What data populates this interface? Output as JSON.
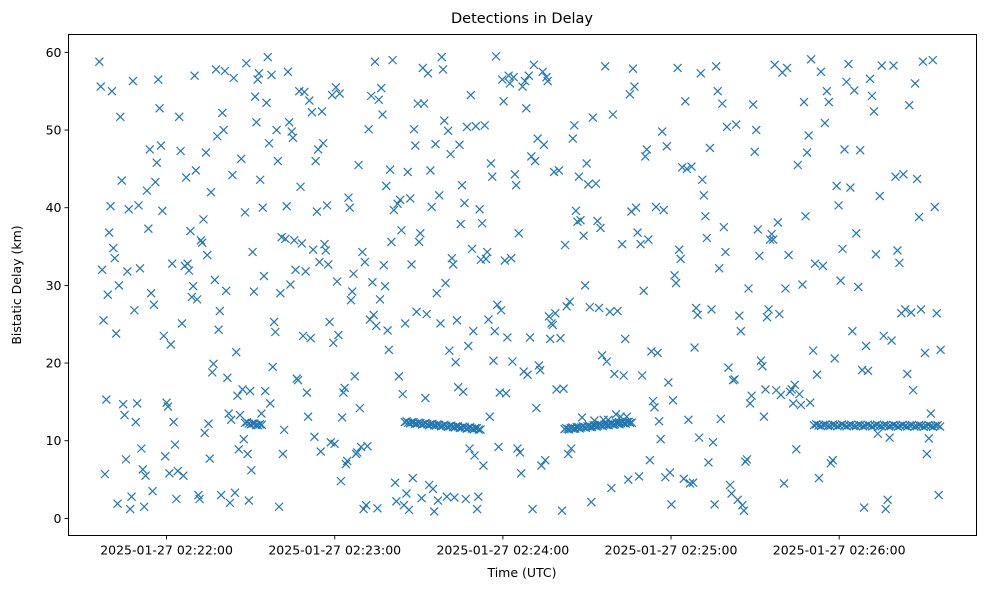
{
  "chart_data": {
    "type": "scatter",
    "title": "Detections in Delay",
    "xlabel": "Time (UTC)",
    "ylabel": "Bistatic Delay (km)",
    "x_unit": "seconds after 2025-01-27 02:21:00 UTC",
    "xlim": [
      25,
      349
    ],
    "ylim": [
      -2.2,
      62.3
    ],
    "grid": false,
    "legend": "none",
    "marker": "x",
    "color": "#1f77b4",
    "x_ticks": [
      {
        "value": 60,
        "label": "2025-01-27 02:22:00"
      },
      {
        "value": 120,
        "label": "2025-01-27 02:23:00"
      },
      {
        "value": 180,
        "label": "2025-01-27 02:24:00"
      },
      {
        "value": 240,
        "label": "2025-01-27 02:25:00"
      },
      {
        "value": 300,
        "label": "2025-01-27 02:26:00"
      }
    ],
    "y_ticks": [
      {
        "value": 0,
        "label": "0"
      },
      {
        "value": 10,
        "label": "10"
      },
      {
        "value": 20,
        "label": "20"
      },
      {
        "value": 30,
        "label": "30"
      },
      {
        "value": 40,
        "label": "40"
      },
      {
        "value": 50,
        "label": "50"
      },
      {
        "value": 60,
        "label": "60"
      }
    ],
    "scattered_detections": [
      {
        "x_start": 36,
        "x_step": 0.5,
        "y": [
          58.8,
          55.6,
          32,
          25.5,
          5.7,
          15.3,
          28.8,
          36.8,
          40.2,
          55,
          34.8,
          33.5,
          23.8,
          1.9,
          30,
          51.7,
          43.5,
          14.7,
          13.3,
          7.6,
          31.8,
          39.8,
          1.2,
          2.8,
          56.3,
          26.8,
          12.4,
          14.8,
          40.3,
          32.2,
          9,
          6.3,
          1.5,
          5.5,
          42.2,
          37.3,
          47.5,
          29,
          3.5,
          27.5,
          43.3,
          45.8,
          56.5,
          52.8,
          48,
          39.6,
          23.5,
          8,
          14.9,
          14.4,
          5.8,
          22.4,
          32.8,
          12.4,
          9.5,
          2.5,
          6.1,
          51.7,
          47.3,
          25.1,
          5.5,
          32.5,
          43.9,
          32.8,
          31.9,
          37,
          28.5,
          29.9
        ]
      },
      {
        "x_start": 70,
        "x_step": 0.45,
        "y": [
          57,
          44.8,
          28.2,
          3,
          2.5,
          35.8,
          35.5,
          38.5,
          11,
          47.1,
          33.9,
          12.2,
          7.7,
          42,
          18.8,
          19.9,
          30.7,
          57.8,
          49.2,
          24.3,
          26.7,
          3,
          52.2,
          50,
          57.6,
          29.3,
          18.1,
          13.5,
          2,
          12.7,
          44.2,
          56.7,
          3.3,
          21.4,
          15.8,
          8.9,
          13.3,
          46.3,
          16.6,
          10.2,
          39.4,
          58.6,
          8.3,
          2.3,
          16.4,
          6.2,
          34.3,
          29.2,
          54.3,
          51,
          56.5,
          57.3,
          43.6,
          13.5,
          40,
          31.2,
          16.4,
          53.5,
          59.4,
          48.3,
          14.8,
          57.1,
          19.5,
          25.3,
          24,
          50,
          46,
          1.5,
          29,
          36.2,
          8.3,
          11.4,
          36,
          40.2,
          57.5,
          51,
          30.1,
          49.8,
          49,
          35.8,
          32,
          18,
          17.8,
          55,
          42.7,
          35.4,
          23.5,
          54.9,
          31.8,
          16.2,
          13.1,
          53.8,
          23.2,
          52.3,
          34.6,
          10.5,
          46,
          39.5,
          47.5,
          33,
          8.6,
          52.4,
          48.3,
          35.3,
          34.5,
          40.3,
          32.7,
          25.3,
          9.8,
          54.5,
          22.6,
          9.6,
          55.5,
          30.5,
          23.6,
          54.7,
          4.8,
          13,
          16.2,
          16.8,
          7,
          7.4,
          41.3,
          40,
          28.1,
          29.2,
          31.5,
          18.3,
          8.3,
          8.5,
          45.5,
          14.2,
          9.2,
          34.3,
          1.2,
          33,
          1.7,
          9.3,
          50.1,
          25.6
        ]
      },
      {
        "x_start": 133,
        "x_step": 0.45,
        "y": [
          54.4,
          30.4,
          26.2,
          58.8,
          24.8,
          1.3,
          53.9,
          28.2,
          55.4,
          52,
          32.6,
          29.9,
          42.8,
          24.2,
          21.7,
          44.9,
          35.6,
          59,
          39.7,
          4.6,
          2.2,
          40.5,
          18.3,
          41,
          37.1,
          16,
          1.7,
          25.1,
          3.2,
          44.6,
          1.1,
          41.2,
          32.7,
          5.2,
          50.1,
          48,
          26.6,
          53.4,
          35.6,
          36.7,
          2.6,
          58,
          53.4,
          15.5,
          26.3,
          57.3,
          4.3,
          44.8,
          40.1,
          3.8,
          0.9,
          48.2,
          29,
          2.3,
          41.6,
          25.1,
          59.4,
          57.8,
          51.2,
          30.3,
          2.8,
          49.9,
          21.6,
          46.9,
          33.5,
          32.7,
          2.7,
          20.1,
          25.5,
          16.9,
          48.1,
          37.9,
          42.9,
          16.3,
          40.6,
          2.5,
          50.4,
          22.2,
          9,
          54.5,
          34.7,
          24.1,
          8.1,
          50.5,
          1.2,
          2.8,
          39.8,
          33.3,
          38,
          6.8,
          50.6,
          33.4,
          34.3,
          25.6,
          13.1,
          45.7,
          44,
          20.3,
          24.1,
          59.5,
          27.5,
          9.2,
          16.2,
          26.8,
          56.5,
          53.7,
          33.2,
          16.1,
          23.3,
          57,
          56,
          33.5,
          20.2,
          56.8,
          44.3,
          42.9,
          9,
          36.7,
          8.5,
          5.8,
          55.6,
          18.9,
          56.3,
          52.8,
          18.5,
          57,
          23.3,
          46.6,
          1.2,
          58.4,
          46,
          14.2,
          48.9,
          19.7,
          19.1,
          6.8,
          57.5,
          48.1,
          7.5,
          56.8,
          56.3,
          26,
          23.1,
          25.1,
          24.9,
          44.6,
          26.4,
          16.6
        ]
      },
      {
        "x_start": 200,
        "x_step": 0.55,
        "y": [
          44.8,
          23.2,
          1,
          16.7,
          35.2,
          27.3,
          8.3,
          27.9,
          9,
          48.9,
          50.6,
          39.6,
          38.2,
          44,
          38.4,
          13,
          36.4,
          30,
          45.7,
          43,
          27.2,
          2.1,
          51.6,
          12.6,
          43.1,
          38.3,
          27.1,
          37.4,
          21,
          12.7,
          58.2,
          20.2,
          12.7,
          26.6,
          3.9,
          52,
          18.6,
          13.4,
          26.7,
          12.4,
          13.1,
          35.3,
          18.4,
          23.1,
          13.1,
          5,
          54.6,
          39.5,
          57.9,
          55.6,
          40,
          36.8,
          5.4,
          35.3,
          18.4,
          29.3,
          46.6,
          47.5,
          35.9,
          7.5,
          21.5,
          15.1,
          14.3,
          40.1,
          21.3,
          12.5,
          10.2,
          49.8,
          39.7,
          5.3,
          47.9,
          17.5,
          5.9,
          1.8,
          15.2,
          31.3,
          30.3,
          58,
          34.6,
          33.4,
          45.2,
          5.1,
          53.7,
          45,
          12.7,
          4.5,
          45.3,
          4.6,
          22,
          27.1,
          26.2,
          10.4,
          57.3,
          43.6,
          41.6,
          38.9,
          36.1,
          7.2,
          47.7,
          26.9,
          9.8,
          1.8,
          58.2,
          55,
          32.2,
          12.8,
          53.4,
          37.5,
          34.3,
          50.4,
          19.4,
          4.3,
          3.2,
          17.8,
          17.9,
          50.7,
          2.4,
          26.1,
          24.1,
          1.7,
          1,
          7.3,
          7.6,
          29.6,
          14.8,
          15.8,
          53.3,
          47.2,
          50,
          37.2,
          33.8,
          20.3,
          19.6,
          13.1,
          16.6,
          25.9,
          26.9,
          35.9,
          36.6,
          35.9,
          58.4,
          16.5,
          38.1,
          26.3,
          15.9,
          57.4,
          4.5,
          29.6,
          58,
          33.9,
          16.3,
          16.6,
          14.8,
          17.2,
          8.9,
          45.5,
          16,
          14.6,
          30.1,
          53.6,
          38.9,
          47.1,
          49.3,
          14.9
        ]
      },
      {
        "x_start": 290,
        "x_step": 0.7,
        "y": [
          59.1,
          21.6,
          32.8,
          18.5,
          5.2,
          57.5,
          32.5,
          50.9,
          55,
          53.6,
          7.1,
          7.5,
          20.6,
          42.8,
          40.3,
          30.6,
          34.7,
          47.5,
          56.2,
          58.5,
          42.6,
          24.1,
          55.1,
          36.7,
          29.8,
          47.4,
          19.1,
          1.4,
          22.2,
          19,
          56.6,
          54.4,
          52.4,
          34,
          10.9,
          41.5,
          58.3,
          23.5,
          1.2,
          2.4,
          10.4,
          22.9,
          58.3,
          44,
          34.5,
          32.9,
          26.4,
          44.3,
          26.9,
          18.6,
          53.2,
          26.5,
          16.5,
          56,
          43.7,
          38.8,
          26.9,
          58.8,
          21.3,
          8.3,
          10.3,
          13.5,
          59,
          40.1,
          26.4,
          3,
          21.7
        ]
      }
    ],
    "tracks": [
      {
        "x_start": 88,
        "x_end": 94,
        "y_start": 12.3,
        "y_end": 12.0,
        "count": 10
      },
      {
        "x_start": 145,
        "x_end": 172,
        "y_start": 12.4,
        "y_end": 11.5,
        "count": 45
      },
      {
        "x_start": 202,
        "x_end": 226,
        "y_start": 11.5,
        "y_end": 12.4,
        "count": 45
      },
      {
        "x_start": 291,
        "x_end": 336,
        "y_start": 12.0,
        "y_end": 11.9,
        "count": 55
      }
    ]
  }
}
